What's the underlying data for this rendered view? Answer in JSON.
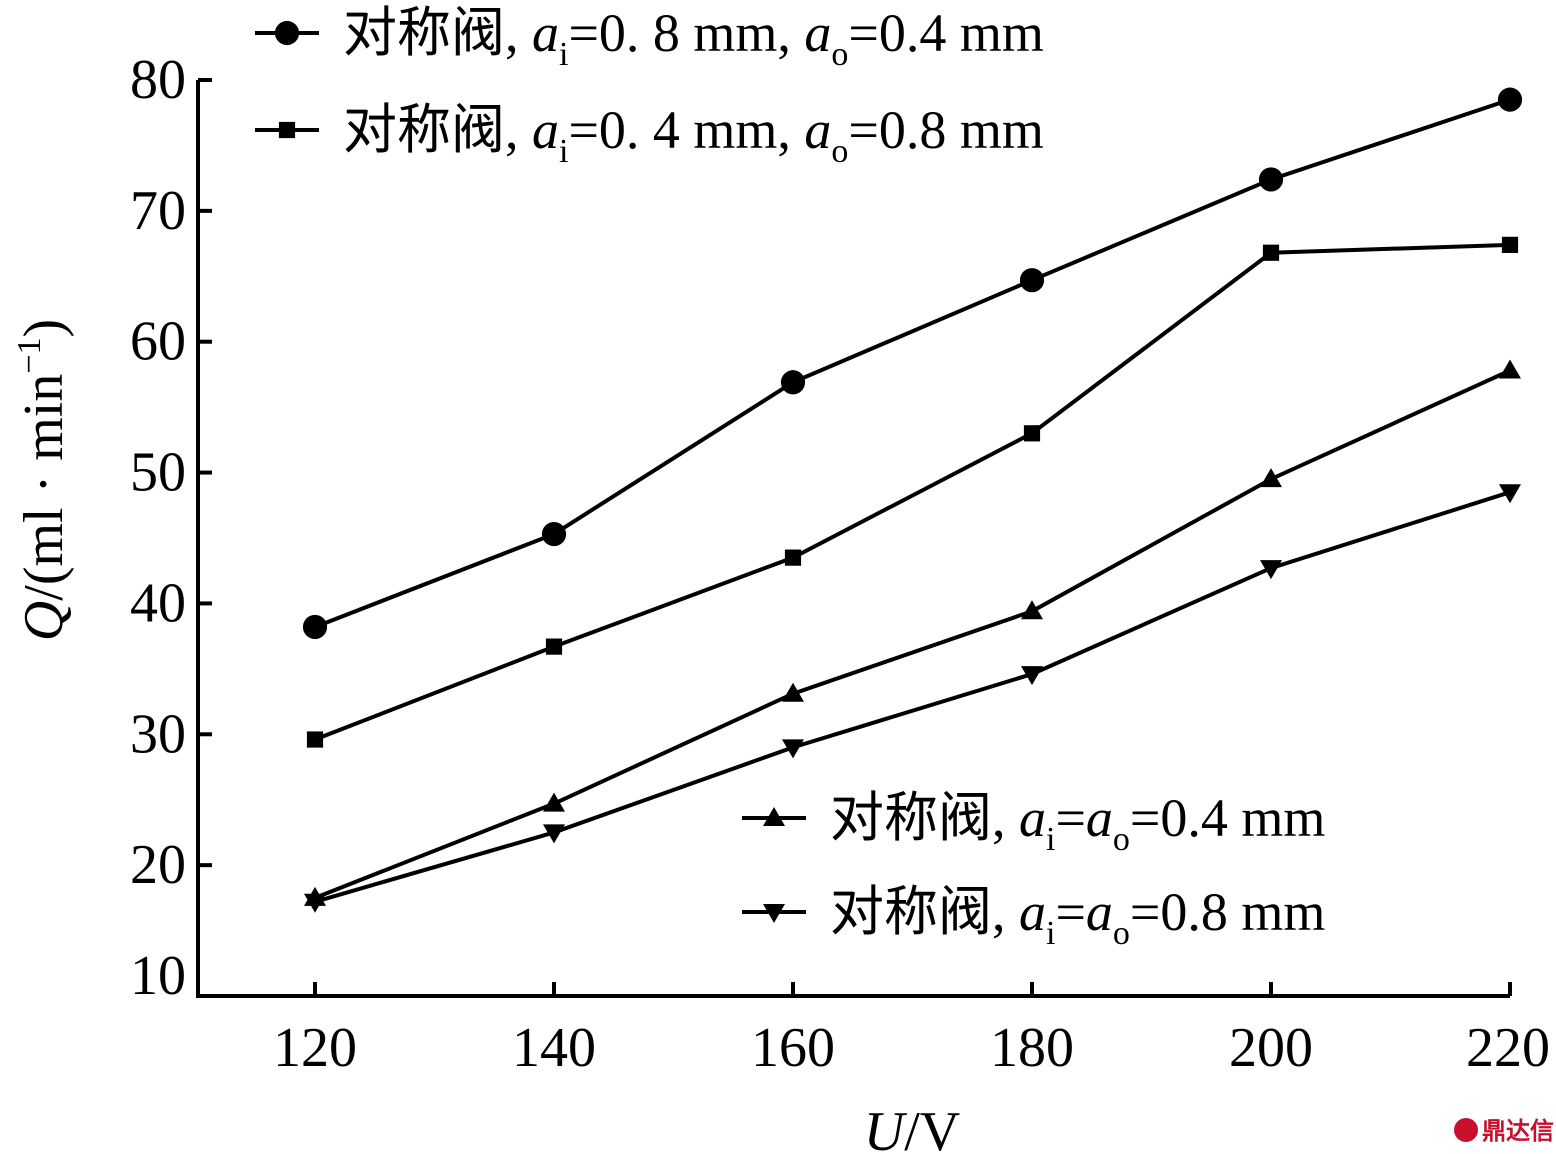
{
  "chart_data": {
    "type": "line",
    "x": [
      120,
      140,
      160,
      180,
      200,
      220
    ],
    "xlim": [
      110,
      220
    ],
    "ylim": [
      10,
      80
    ],
    "xticks": [
      120,
      140,
      160,
      180,
      200,
      220
    ],
    "yticks": [
      10,
      20,
      30,
      40,
      50,
      60,
      70,
      80
    ],
    "xlabel": {
      "var": "U",
      "unit": "/V"
    },
    "ylabel": {
      "var": "Q",
      "unit": "/(ml · min",
      "sup": "−1",
      "close": ")"
    },
    "grid": false,
    "series": [
      {
        "name": "对称阀, ai=0. 8 mm, ao=0.4 mm",
        "marker": "circle",
        "values": [
          38.2,
          45.3,
          56.9,
          64.7,
          72.4,
          78.5
        ],
        "legend": {
          "prefix": "对称阀, ",
          "v1": "a",
          "s1": "i",
          "mid": "=0. 8 mm, ",
          "v2": "a",
          "s2": "o",
          "end": "=0.4 mm"
        }
      },
      {
        "name": "对称阀, ai=0. 4 mm, ao=0.8 mm",
        "marker": "square",
        "values": [
          29.6,
          36.7,
          43.5,
          53.0,
          66.8,
          67.4
        ],
        "legend": {
          "prefix": "对称阀, ",
          "v1": "a",
          "s1": "i",
          "mid": "=0. 4 mm, ",
          "v2": "a",
          "s2": "o",
          "end": "=0.8 mm"
        }
      },
      {
        "name": "对称阀, ai=ao=0.4 mm",
        "marker": "triangle-up",
        "values": [
          17.5,
          24.7,
          33.1,
          39.4,
          49.5,
          57.8
        ],
        "legend": {
          "prefix": "对称阀, ",
          "v1": "a",
          "s1": "i",
          "mid": "=",
          "v2": "a",
          "s2": "o",
          "end": "=0.4 mm"
        }
      },
      {
        "name": "对称阀, ai=ao=0.8 mm",
        "marker": "triangle-down",
        "values": [
          17.2,
          22.5,
          29.0,
          34.6,
          42.7,
          48.5
        ],
        "legend": {
          "prefix": "对称阀, ",
          "v1": "a",
          "s1": "i",
          "mid": "=",
          "v2": "a",
          "s2": "o",
          "end": "=0.8 mm"
        }
      }
    ]
  },
  "watermark": {
    "text": "鼎达信",
    "icon": "logo-icon"
  }
}
